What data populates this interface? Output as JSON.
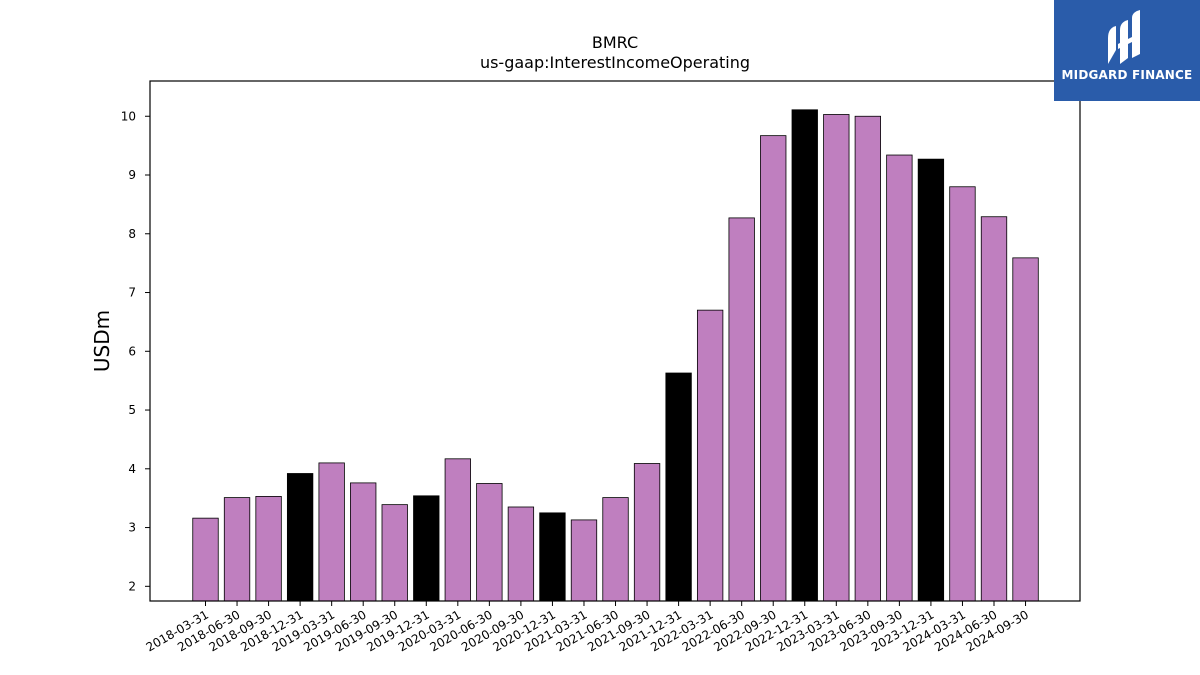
{
  "chart_data": {
    "type": "bar",
    "title": "BMRC",
    "subtitle": "us-gaap:InterestIncomeOperating",
    "xlabel": "",
    "ylabel": "USDm",
    "ylim": [
      1.75,
      10.6
    ],
    "yticks": [
      2,
      3,
      4,
      5,
      6,
      7,
      8,
      9,
      10
    ],
    "grid": false,
    "colors": {
      "quarter": "#bf7fbf",
      "year_end": "#000000",
      "edge": "#000000"
    },
    "categories": [
      "2018-03-31",
      "2018-06-30",
      "2018-09-30",
      "2018-12-31",
      "2019-03-31",
      "2019-06-30",
      "2019-09-30",
      "2019-12-31",
      "2020-03-31",
      "2020-06-30",
      "2020-09-30",
      "2020-12-31",
      "2021-03-31",
      "2021-06-30",
      "2021-09-30",
      "2021-12-31",
      "2022-03-31",
      "2022-06-30",
      "2022-09-30",
      "2022-12-31",
      "2023-03-31",
      "2023-06-30",
      "2023-09-30",
      "2023-12-31",
      "2024-03-31",
      "2024-06-30",
      "2024-09-30"
    ],
    "values": [
      3.16,
      3.51,
      3.53,
      3.92,
      4.1,
      3.76,
      3.39,
      3.54,
      4.17,
      3.75,
      3.35,
      3.25,
      3.13,
      3.51,
      4.09,
      5.63,
      6.7,
      8.27,
      9.67,
      10.11,
      10.03,
      10.0,
      9.34,
      9.27,
      8.8,
      8.29,
      7.59
    ],
    "highlight": [
      false,
      false,
      false,
      true,
      false,
      false,
      false,
      true,
      false,
      false,
      false,
      true,
      false,
      false,
      false,
      true,
      false,
      false,
      false,
      true,
      false,
      false,
      false,
      true,
      false,
      false,
      false
    ]
  },
  "logo": {
    "text": "MIDGARD FINANCE",
    "icon": "midgard-logo-icon"
  }
}
